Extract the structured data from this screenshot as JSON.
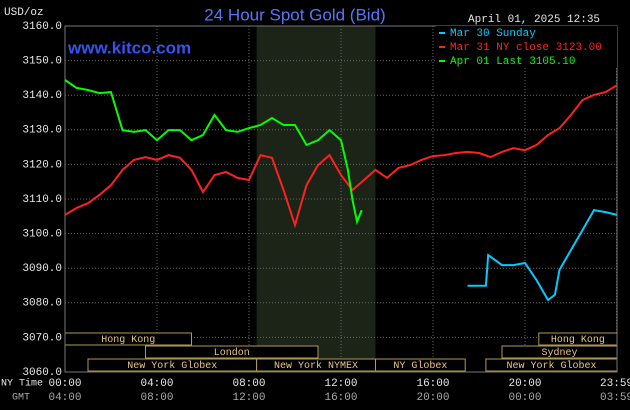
{
  "chart_data": {
    "type": "line",
    "title": "24 Hour Spot Gold (Bid)",
    "date": "April 01, 2025 12:35",
    "y_label": "USD/oz",
    "watermark": "www.kitco.com",
    "x_label": "NY Time",
    "x2_label": "GMT",
    "xlim": [
      0,
      24
    ],
    "ylim": [
      3060,
      3160
    ],
    "yticks": [
      {
        "value": 3060,
        "label": "3060.0"
      },
      {
        "value": 3070,
        "label": "3070.0"
      },
      {
        "value": 3080,
        "label": "3080.0"
      },
      {
        "value": 3090,
        "label": "3090.0"
      },
      {
        "value": 3100,
        "label": "3100.0"
      },
      {
        "value": 3110,
        "label": "3110.0"
      },
      {
        "value": 3120,
        "label": "3120.0"
      },
      {
        "value": 3130,
        "label": "3130.0"
      },
      {
        "value": 3140,
        "label": "3140.0"
      },
      {
        "value": 3150,
        "label": "3150.0"
      },
      {
        "value": 3160,
        "label": "3160.0"
      }
    ],
    "xticks": [
      {
        "value": 0,
        "label": "00:00"
      },
      {
        "value": 4,
        "label": "04:00"
      },
      {
        "value": 8,
        "label": "08:00"
      },
      {
        "value": 12,
        "label": "12:00"
      },
      {
        "value": 16,
        "label": "16:00"
      },
      {
        "value": 20,
        "label": "20:00"
      },
      {
        "value": 23.98,
        "label": "23:59"
      }
    ],
    "x2_tick_labels": [
      "04:00",
      "08:00",
      "12:00",
      "16:00",
      "20:00",
      "00:00",
      "03:59"
    ],
    "grid": true,
    "shaded_band": [
      8.33,
      13.5
    ],
    "sessions": [
      {
        "name": "Hong Kong",
        "start": 0,
        "end": 5.5
      },
      {
        "name": "London",
        "start": 3.5,
        "end": 11
      },
      {
        "name": "New York Globex",
        "start": 1,
        "end": 8.33
      },
      {
        "name": "New York NYMEX",
        "start": 8.33,
        "end": 13.5
      },
      {
        "name": "NY Globex",
        "start": 13.5,
        "end": 17.4
      },
      {
        "name": "Hong Kong",
        "start": 20.6,
        "end": 24
      },
      {
        "name": "Sydney",
        "start": 19,
        "end": 24
      },
      {
        "name": "New York Globex",
        "start": 18.3,
        "end": 24
      }
    ],
    "series": [
      {
        "name": "Mar 30 Sunday",
        "color": "#00ccff",
        "x": [
          17.5,
          18.3,
          18.4,
          19,
          19.5,
          20,
          20.5,
          21,
          21.3,
          21.5,
          22,
          22.5,
          23,
          23.5,
          24
        ],
        "values": [
          3084.9,
          3084.9,
          3093.8,
          3090.9,
          3090.9,
          3091.5,
          3086.6,
          3080.8,
          3082.3,
          3089.5,
          3095.3,
          3101.0,
          3106.8,
          3106.2,
          3105.4
        ]
      },
      {
        "name": "Mar 31 NY close 3123.00",
        "color": "#ff2020",
        "x": [
          0,
          0.5,
          1,
          1.5,
          2,
          2.5,
          3,
          3.5,
          4,
          4.5,
          5,
          5.5,
          6,
          6.5,
          7,
          7.5,
          8,
          8.5,
          9,
          9.5,
          10,
          10.5,
          11,
          11.5,
          12,
          12.5,
          13,
          13.5,
          14,
          14.5,
          15,
          15.5,
          16,
          16.5,
          17,
          17.5,
          18,
          18.5,
          19,
          19.5,
          20,
          20.5,
          21,
          21.5,
          22,
          22.5,
          23,
          23.5,
          24
        ],
        "values": [
          3105.4,
          3107.4,
          3108.8,
          3111.2,
          3114.0,
          3118.4,
          3121.3,
          3122.1,
          3121.3,
          3122.7,
          3121.9,
          3118.4,
          3112.0,
          3116.9,
          3117.8,
          3116.1,
          3115.5,
          3122.7,
          3121.9,
          3112.6,
          3102.5,
          3114.0,
          3119.8,
          3122.7,
          3116.9,
          3112.6,
          3115.5,
          3118.4,
          3116.1,
          3119.0,
          3119.8,
          3121.3,
          3122.4,
          3122.7,
          3123.3,
          3123.6,
          3123.3,
          3122.1,
          3123.6,
          3124.7,
          3124.1,
          3125.6,
          3128.5,
          3130.5,
          3134.3,
          3138.6,
          3140.1,
          3140.9,
          3142.9
        ]
      },
      {
        "name": "Apr 01 Last 3105.10",
        "color": "#00ff00",
        "x": [
          0,
          0.5,
          1,
          1.5,
          2,
          2.5,
          3,
          3.5,
          4,
          4.5,
          5,
          5.5,
          6,
          6.5,
          7,
          7.5,
          8,
          8.5,
          9,
          9.5,
          10,
          10.5,
          11,
          11.5,
          12,
          12.3,
          12.5,
          12.7,
          12.9
        ],
        "values": [
          3144.4,
          3142.1,
          3141.5,
          3140.6,
          3140.9,
          3129.9,
          3129.4,
          3129.9,
          3127.0,
          3129.9,
          3129.9,
          3127.0,
          3128.5,
          3134.3,
          3129.9,
          3129.4,
          3130.5,
          3131.4,
          3133.4,
          3131.4,
          3131.4,
          3125.6,
          3127.0,
          3129.9,
          3127.0,
          3118.4,
          3109.7,
          3103.4,
          3106.8
        ]
      }
    ]
  }
}
